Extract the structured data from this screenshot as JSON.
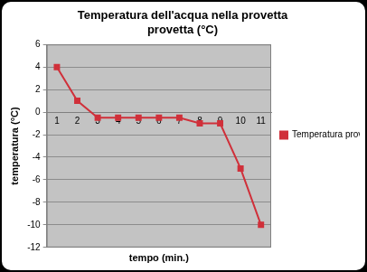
{
  "chart_data": {
    "type": "line",
    "title": "Temperatura dell'acqua nella provetta provetta (°C)",
    "x_label": "tempo (min.)",
    "y_label": "temperatura (°C)",
    "categories": [
      "1",
      "2",
      "3",
      "4",
      "5",
      "6",
      "7",
      "8",
      "9",
      "10",
      "11"
    ],
    "series": [
      {
        "name": "Temperatura provetta (°C)",
        "color": "#d0303a",
        "values": [
          4,
          1,
          -0.5,
          -0.5,
          -0.5,
          -0.5,
          -0.5,
          -1,
          -1,
          -5,
          -10
        ],
        "marker": "square",
        "line_style": "solid"
      }
    ],
    "ylim": [
      -12,
      6
    ],
    "yticks": [
      -12,
      -10,
      -8,
      -6,
      -4,
      -2,
      0,
      2,
      4,
      6
    ],
    "grid": true,
    "legend": "right"
  }
}
